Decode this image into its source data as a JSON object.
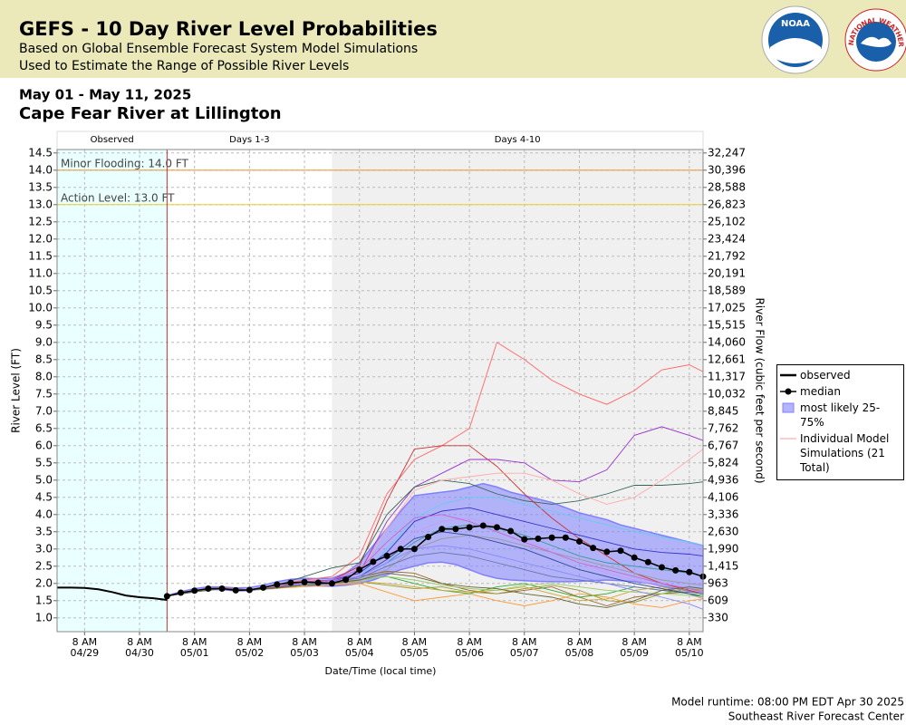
{
  "header": {
    "title": "GEFS - 10 Day River Level Probabilities",
    "subtitle1": "Based on Global Ensemble Forecast System Model Simulations",
    "subtitle2": "Used to Estimate the Range of Possible River Levels",
    "logo_noaa": "NOAA",
    "logo_nws": "NATIONAL WEATHER SERVICE"
  },
  "chart_data": {
    "type": "line",
    "date_range": "May 01 - May 11, 2025",
    "title": "Cape Fear River at Lillington",
    "y_label": "River Level (FT)",
    "y2_label": "River Flow (cubic feet per second)",
    "x_label": "Date/Time (local time)",
    "xlim": [
      "04/28 20:00",
      "05/10 14:00"
    ],
    "ylim": [
      0.6,
      14.6
    ],
    "grid": true,
    "xticks": [
      {
        "value": "04/29 08:00",
        "label": "8 AM",
        "date": "04/29"
      },
      {
        "value": "04/30 08:00",
        "label": "8 AM",
        "date": "04/30"
      },
      {
        "value": "05/01 08:00",
        "label": "8 AM",
        "date": "05/01"
      },
      {
        "value": "05/02 08:00",
        "label": "8 AM",
        "date": "05/02"
      },
      {
        "value": "05/03 08:00",
        "label": "8 AM",
        "date": "05/03"
      },
      {
        "value": "05/04 08:00",
        "label": "8 AM",
        "date": "05/04"
      },
      {
        "value": "05/05 08:00",
        "label": "8 AM",
        "date": "05/05"
      },
      {
        "value": "05/06 08:00",
        "label": "8 AM",
        "date": "05/06"
      },
      {
        "value": "05/07 08:00",
        "label": "8 AM",
        "date": "05/07"
      },
      {
        "value": "05/08 08:00",
        "label": "8 AM",
        "date": "05/08"
      },
      {
        "value": "05/09 08:00",
        "label": "8 AM",
        "date": "05/09"
      },
      {
        "value": "05/10 08:00",
        "label": "8 AM",
        "date": "05/10"
      }
    ],
    "yticks": [
      14.5,
      {
        "value": 14,
        "label": "14.0"
      },
      13.5,
      {
        "value": 13,
        "label": "13.0"
      },
      12.5,
      {
        "value": 12,
        "label": "12.0"
      },
      11.5,
      {
        "value": 11,
        "label": "11.0"
      },
      10.5,
      {
        "value": 10,
        "label": "10.0"
      },
      9.5,
      {
        "value": 9,
        "label": "9.0"
      },
      8.5,
      {
        "value": 8,
        "label": "8.0"
      },
      7.5,
      {
        "value": 7,
        "label": "7.0"
      },
      6.5,
      {
        "value": 6,
        "label": "6.0"
      },
      5.5,
      {
        "value": 5,
        "label": "5.0"
      },
      4.5,
      {
        "value": 4,
        "label": "4.0"
      },
      3.5,
      {
        "value": 3,
        "label": "3.0"
      },
      2.5,
      {
        "value": 2,
        "label": "2.0"
      },
      1.5,
      {
        "value": 1,
        "label": "1.0"
      }
    ],
    "y2ticks": [
      {
        "value": 32247,
        "label": "32,247"
      },
      {
        "value": 30396,
        "label": "30,396"
      },
      {
        "value": 28588,
        "label": "28,588"
      },
      {
        "value": 26823,
        "label": "26,823"
      },
      {
        "value": 25102,
        "label": "25,102"
      },
      {
        "value": 23424,
        "label": "23,424"
      },
      {
        "value": 21792,
        "label": "21,792"
      },
      {
        "value": 20191,
        "label": "20,191"
      },
      {
        "value": 18589,
        "label": "18,589"
      },
      {
        "value": 17025,
        "label": "17,025"
      },
      {
        "value": 15515,
        "label": "15,515"
      },
      {
        "value": 14060,
        "label": "14,060"
      },
      {
        "value": 12661,
        "label": "12,661"
      },
      {
        "value": 11317,
        "label": "11,317"
      },
      {
        "value": 10032,
        "label": "10,032"
      },
      {
        "value": 8845,
        "label": "8,845"
      },
      {
        "value": 7762,
        "label": "7,762"
      },
      {
        "value": 6767,
        "label": "6,767"
      },
      {
        "value": 5824,
        "label": "5,824"
      },
      {
        "value": 4936,
        "label": "4,936"
      },
      {
        "value": 4106,
        "label": "4,106"
      },
      {
        "value": 3336,
        "label": "3,336"
      },
      {
        "value": 2630,
        "label": "2,630"
      },
      {
        "value": 1990,
        "label": "1,990"
      },
      {
        "value": 1415,
        "label": "1,415"
      },
      963,
      609,
      330
    ],
    "periods": [
      {
        "label": "Observed",
        "start": "04/28 20:00",
        "end": "04/30 20:00",
        "color": "#eaffff"
      },
      {
        "label": "Days 1-3",
        "start": "04/30 20:00",
        "end": "05/03 20:00",
        "color": "#ffffff"
      },
      {
        "label": "Days 4-10",
        "start": "05/03 20:00",
        "end": "05/10 14:00",
        "color": "#f0f0f0"
      }
    ],
    "forecast_start": "04/30 20:00",
    "thresholds": [
      {
        "label": "Minor Flooding: 14.0 FT",
        "value": 14.0,
        "color": "#e8a040"
      },
      {
        "label": "Action Level: 13.0 FT",
        "value": 13.0,
        "color": "#e8d040"
      }
    ],
    "observed": {
      "name": "observed",
      "color": "#000000",
      "x": [
        "04/28 20:00",
        "04/29 02:00",
        "04/29 08:00",
        "04/29 14:00",
        "04/29 20:00",
        "04/30 02:00",
        "04/30 08:00",
        "04/30 14:00",
        "04/30 20:00"
      ],
      "values": [
        1.88,
        1.88,
        1.87,
        1.83,
        1.75,
        1.65,
        1.6,
        1.57,
        1.52
      ]
    },
    "forecast_x": [
      "04/30 20:00",
      "05/01 02:00",
      "05/01 08:00",
      "05/01 14:00",
      "05/01 20:00",
      "05/02 02:00",
      "05/02 08:00",
      "05/02 14:00",
      "05/02 20:00",
      "05/03 02:00",
      "05/03 08:00",
      "05/03 14:00",
      "05/03 20:00",
      "05/04 02:00",
      "05/04 08:00",
      "05/04 14:00",
      "05/04 20:00",
      "05/05 02:00",
      "05/05 08:00",
      "05/05 14:00",
      "05/05 20:00",
      "05/06 02:00",
      "05/06 08:00",
      "05/06 14:00",
      "05/06 20:00",
      "05/07 02:00",
      "05/07 08:00",
      "05/07 14:00",
      "05/07 20:00",
      "05/08 02:00",
      "05/08 08:00",
      "05/08 14:00",
      "05/08 20:00",
      "05/09 02:00",
      "05/09 08:00",
      "05/09 14:00",
      "05/09 20:00",
      "05/10 02:00",
      "05/10 08:00",
      "05/10 14:00"
    ],
    "median": {
      "name": "median",
      "color": "#000000",
      "values": [
        1.63,
        1.73,
        1.79,
        1.85,
        1.85,
        1.8,
        1.81,
        1.88,
        1.97,
        2.02,
        2.04,
        2.02,
        2.0,
        2.11,
        2.4,
        2.63,
        2.8,
        3.0,
        3.0,
        3.35,
        3.58,
        3.58,
        3.63,
        3.68,
        3.63,
        3.52,
        3.28,
        3.3,
        3.33,
        3.33,
        3.22,
        3.03,
        2.92,
        2.95,
        2.75,
        2.62,
        2.47,
        2.38,
        2.33,
        2.2
      ]
    },
    "band": {
      "name": "most likely 25-75%",
      "color": "#8080ff",
      "lower": [
        1.63,
        1.72,
        1.77,
        1.82,
        1.82,
        1.78,
        1.79,
        1.84,
        1.9,
        1.93,
        1.95,
        1.93,
        1.92,
        1.95,
        2.0,
        2.1,
        2.25,
        2.4,
        2.5,
        2.6,
        2.62,
        2.55,
        2.4,
        2.25,
        2.15,
        2.1,
        2.08,
        2.06,
        2.05,
        2.05,
        2.06,
        2.08,
        2.1,
        2.08,
        2.05,
        2.0,
        1.92,
        1.85,
        1.78,
        1.7
      ],
      "upper": [
        1.65,
        1.76,
        1.85,
        1.9,
        1.9,
        1.87,
        1.88,
        1.95,
        2.05,
        2.12,
        2.15,
        2.14,
        2.15,
        2.3,
        2.6,
        3.1,
        3.6,
        4.1,
        4.55,
        4.6,
        4.65,
        4.7,
        4.8,
        4.9,
        4.8,
        4.65,
        4.55,
        4.45,
        4.35,
        4.2,
        4.05,
        3.95,
        3.85,
        3.7,
        3.6,
        3.5,
        3.4,
        3.3,
        3.2,
        3.1
      ]
    },
    "members_label": "Individual Model Simulations (21 Total)",
    "members_legend_color": "#ff9999",
    "model_x": [
      "04/30 20:00",
      "05/01 08:00",
      "05/01 20:00",
      "05/02 08:00",
      "05/02 20:00",
      "05/03 08:00",
      "05/03 20:00",
      "05/04 08:00",
      "05/04 20:00",
      "05/05 08:00",
      "05/05 20:00",
      "05/06 08:00",
      "05/06 20:00",
      "05/07 08:00",
      "05/07 20:00",
      "05/08 08:00",
      "05/08 20:00",
      "05/09 08:00",
      "05/09 20:00",
      "05/10 08:00",
      "05/10 14:00"
    ],
    "members": [
      {
        "color": "#ff6666",
        "values": [
          1.63,
          1.8,
          1.88,
          1.82,
          1.95,
          2.1,
          2.2,
          2.8,
          4.6,
          5.6,
          6.0,
          6.5,
          9.0,
          8.5,
          7.9,
          7.5,
          7.2,
          7.6,
          8.2,
          8.35,
          8.15
        ]
      },
      {
        "color": "#cc3333",
        "values": [
          1.63,
          1.78,
          1.85,
          1.8,
          1.9,
          2.05,
          2.1,
          2.5,
          4.4,
          5.9,
          6.0,
          6.0,
          5.4,
          4.6,
          3.9,
          3.3,
          2.8,
          2.3,
          2.0,
          1.8,
          1.7
        ]
      },
      {
        "color": "#9933cc",
        "values": [
          1.63,
          1.76,
          1.85,
          1.8,
          1.88,
          2.0,
          2.05,
          2.3,
          3.8,
          4.8,
          5.2,
          5.6,
          5.6,
          5.5,
          5.0,
          4.95,
          5.3,
          6.3,
          6.55,
          6.3,
          6.15
        ]
      },
      {
        "color": "#336655",
        "values": [
          1.63,
          1.77,
          1.86,
          1.82,
          1.95,
          2.2,
          2.45,
          2.6,
          4.0,
          4.8,
          5.0,
          4.9,
          4.6,
          4.4,
          4.3,
          4.4,
          4.6,
          4.85,
          4.85,
          4.9,
          4.95
        ]
      },
      {
        "color": "#ffaaaa",
        "values": [
          1.63,
          1.75,
          1.85,
          1.8,
          1.85,
          1.95,
          2.0,
          2.3,
          3.6,
          4.7,
          5.0,
          5.1,
          5.2,
          5.2,
          5.0,
          4.6,
          4.3,
          4.5,
          5.0,
          5.6,
          5.9
        ]
      },
      {
        "color": "#66ccee",
        "values": [
          1.63,
          1.75,
          1.84,
          1.8,
          1.86,
          1.98,
          2.05,
          2.2,
          3.0,
          3.9,
          4.3,
          4.5,
          4.5,
          4.3,
          4.1,
          3.9,
          3.7,
          3.5,
          3.35,
          3.2,
          3.1
        ]
      },
      {
        "color": "#3333cc",
        "values": [
          1.63,
          1.76,
          1.85,
          1.81,
          1.87,
          2.0,
          2.1,
          2.3,
          2.9,
          3.8,
          4.1,
          4.2,
          4.0,
          3.8,
          3.6,
          3.4,
          3.2,
          3.0,
          2.9,
          2.85,
          2.8
        ]
      },
      {
        "color": "#339999",
        "values": [
          1.63,
          1.76,
          1.85,
          1.81,
          1.87,
          2.0,
          2.05,
          2.2,
          2.6,
          3.2,
          3.6,
          3.7,
          3.6,
          3.4,
          3.1,
          2.8,
          2.6,
          2.5,
          2.4,
          2.3,
          2.2
        ]
      },
      {
        "color": "#999999",
        "values": [
          1.63,
          1.76,
          1.85,
          1.81,
          1.87,
          1.95,
          2.05,
          2.1,
          2.4,
          3.0,
          3.3,
          3.4,
          3.3,
          3.1,
          2.9,
          2.7,
          2.5,
          2.3,
          2.1,
          2.0,
          1.95
        ]
      },
      {
        "color": "#996633",
        "values": [
          1.63,
          1.76,
          1.85,
          1.81,
          1.87,
          1.95,
          2.0,
          2.2,
          2.35,
          2.3,
          2.0,
          1.8,
          1.7,
          1.8,
          1.9,
          1.6,
          1.35,
          1.6,
          1.7,
          1.75,
          1.7
        ]
      },
      {
        "color": "#ff9933",
        "values": [
          1.63,
          1.76,
          1.85,
          1.81,
          1.87,
          1.9,
          1.95,
          2.0,
          1.75,
          1.5,
          1.6,
          1.7,
          1.5,
          1.35,
          1.5,
          1.7,
          1.6,
          1.4,
          1.3,
          1.5,
          1.55
        ]
      },
      {
        "color": "#33aa33",
        "values": [
          1.63,
          1.76,
          1.85,
          1.81,
          1.87,
          1.95,
          2.0,
          2.1,
          2.2,
          2.0,
          1.8,
          1.7,
          1.9,
          2.0,
          1.8,
          1.6,
          1.7,
          1.9,
          1.8,
          1.7,
          1.65
        ]
      },
      {
        "color": "#999933",
        "values": [
          1.63,
          1.76,
          1.85,
          1.81,
          1.87,
          1.95,
          2.0,
          2.05,
          1.95,
          1.85,
          1.9,
          1.75,
          1.7,
          1.85,
          1.95,
          1.8,
          1.5,
          1.45,
          1.7,
          1.85,
          1.8
        ]
      },
      {
        "color": "#cc99ff",
        "values": [
          1.63,
          1.76,
          1.85,
          1.81,
          1.87,
          2.0,
          2.05,
          2.2,
          2.8,
          3.5,
          3.8,
          3.9,
          3.7,
          3.3,
          2.9,
          2.6,
          2.3,
          2.1,
          1.9,
          1.7,
          1.55
        ]
      },
      {
        "color": "#6677aa",
        "values": [
          1.63,
          1.76,
          1.85,
          1.81,
          1.87,
          2.0,
          2.05,
          2.15,
          2.5,
          2.8,
          2.9,
          2.8,
          2.6,
          2.4,
          2.2,
          2.1,
          2.0,
          1.9,
          1.8,
          1.75,
          1.7
        ]
      },
      {
        "color": "#cc66cc",
        "values": [
          1.63,
          1.76,
          1.85,
          1.81,
          1.87,
          2.0,
          2.1,
          2.4,
          3.2,
          3.9,
          4.0,
          3.8,
          3.5,
          3.2,
          2.9,
          2.6,
          2.4,
          2.2,
          2.0,
          1.85,
          1.75
        ]
      },
      {
        "color": "#ccaa33",
        "values": [
          1.63,
          1.76,
          1.85,
          1.81,
          1.87,
          1.95,
          2.0,
          2.05,
          2.0,
          1.9,
          1.8,
          1.75,
          1.8,
          1.9,
          1.7,
          1.5,
          1.55,
          1.8,
          1.9,
          1.7,
          1.6
        ]
      },
      {
        "color": "#334499",
        "values": [
          1.63,
          1.76,
          1.85,
          1.81,
          1.87,
          2.0,
          2.05,
          2.2,
          2.7,
          3.3,
          3.5,
          3.4,
          3.2,
          3.0,
          2.7,
          2.4,
          2.2,
          2.0,
          1.85,
          1.7,
          1.6
        ]
      },
      {
        "color": "#99cc66",
        "values": [
          1.63,
          1.76,
          1.85,
          1.81,
          1.87,
          1.95,
          2.0,
          2.1,
          2.2,
          2.1,
          1.95,
          1.85,
          1.8,
          1.95,
          2.0,
          1.9,
          1.8,
          1.75,
          1.7,
          1.65,
          1.6
        ]
      },
      {
        "color": "#8888ff",
        "values": [
          1.63,
          1.76,
          1.85,
          1.81,
          1.87,
          2.0,
          2.05,
          2.2,
          2.6,
          3.0,
          3.1,
          3.0,
          2.8,
          2.6,
          2.4,
          2.2,
          2.0,
          1.8,
          1.6,
          1.4,
          1.25
        ]
      },
      {
        "color": "#666633",
        "values": [
          1.63,
          1.76,
          1.85,
          1.81,
          1.87,
          1.95,
          2.0,
          2.1,
          2.3,
          2.2,
          2.0,
          1.9,
          1.85,
          1.7,
          1.6,
          1.4,
          1.3,
          1.5,
          1.8,
          1.9,
          1.85
        ]
      }
    ]
  },
  "footer": {
    "runtime": "Model runtime: 08:00 PM EDT Apr 30 2025",
    "center": "Southeast River Forecast Center"
  }
}
